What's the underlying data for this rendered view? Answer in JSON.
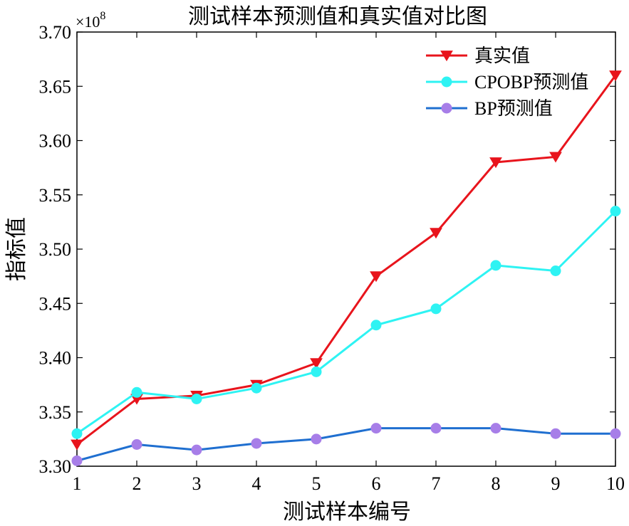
{
  "chart_data": {
    "type": "line",
    "title": "测试样本预测值和真实值对比图",
    "xlabel": "测试样本编号",
    "ylabel": "指标值",
    "y_multiplier": "×10",
    "y_exponent": "8",
    "x": [
      1,
      2,
      3,
      4,
      5,
      6,
      7,
      8,
      9,
      10
    ],
    "xlim": [
      1,
      10
    ],
    "ylim": [
      3.3,
      3.7
    ],
    "x_ticks": [
      "1",
      "2",
      "3",
      "4",
      "5",
      "6",
      "7",
      "8",
      "9",
      "10"
    ],
    "y_ticks": [
      "3.30",
      "3.35",
      "3.40",
      "3.45",
      "3.50",
      "3.55",
      "3.60",
      "3.65",
      "3.70"
    ],
    "grid": false,
    "legend_position": "top-right",
    "series": [
      {
        "name": "真实值",
        "color": "#e8141c",
        "marker": "triangle-down",
        "values": [
          3.32,
          3.362,
          3.365,
          3.375,
          3.395,
          3.475,
          3.515,
          3.58,
          3.585,
          3.66
        ]
      },
      {
        "name": "CPOBP预测值",
        "color": "#2ef3f3",
        "marker": "circle",
        "values": [
          3.33,
          3.368,
          3.362,
          3.372,
          3.387,
          3.43,
          3.445,
          3.485,
          3.48,
          3.535
        ]
      },
      {
        "name": "BP预测值",
        "color": "#1f6fd0",
        "marker": "circle",
        "marker_color": "#a77ee8",
        "values": [
          3.305,
          3.32,
          3.315,
          3.321,
          3.325,
          3.335,
          3.335,
          3.335,
          3.33,
          3.33
        ]
      }
    ]
  }
}
